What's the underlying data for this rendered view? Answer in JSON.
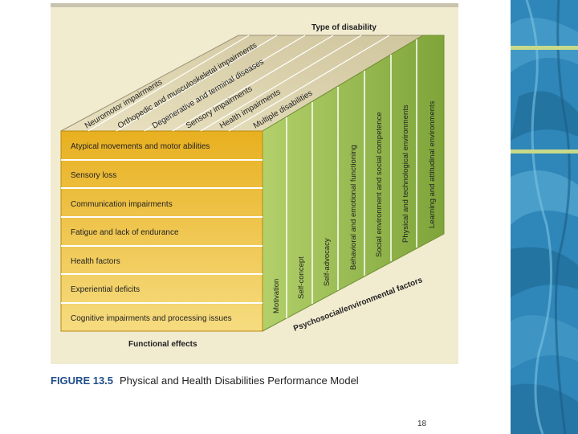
{
  "figure": {
    "top_label": "Type of disability",
    "bottom_label": "Functional effects",
    "caption_label": "FIGURE 13.5",
    "caption_title": "Physical and Health Disabilities Performance Model",
    "side_label": "Psychosocial/environmental factors",
    "disability_types": [
      "Neuromotor impairments",
      "Orthopedic and musculoskeletal impairments",
      "Degenerative and terminal diseases",
      "Sensory impairments",
      "Health impairments",
      "Multiple disabilities"
    ],
    "functional_effects": [
      "Atypical movements and motor abilities",
      "Sensory loss",
      "Communication impairments",
      "Fatigue and lack of endurance",
      "Health factors",
      "Experiential deficits",
      "Cognitive impairments and processing issues"
    ],
    "psychosocial_factors": [
      "Motivation",
      "Self-concept",
      "Self-advocacy",
      "Behavioral and emotional functioning",
      "Social environment and social competence",
      "Physical and technological environments",
      "Learning and attitudinal environments"
    ]
  },
  "page_number": "18",
  "colors": {
    "panel": "#f1ebd0",
    "front_top": "#e8b020",
    "front_bottom": "#f6dc80",
    "side_light": "#a4c55b",
    "side_dark": "#7ea43a",
    "top_face": "#ded5b2",
    "deco_blue": "#2f86b8",
    "deco_stripe": "#c9d98a"
  }
}
